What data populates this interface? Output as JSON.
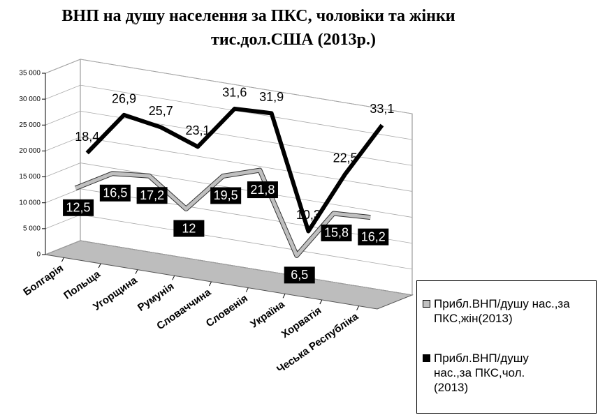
{
  "chart_data": {
    "type": "line3d",
    "title": "ВНП на душу населення за ПКС, чоловіки та жінки тис.дол.США (2013р.)",
    "categories": [
      "Болгарія",
      "Польща",
      "Угорщина",
      "Румунія",
      "Словаччина",
      "Словенія",
      "Україна",
      "Хорватія",
      "Чеська Республіка"
    ],
    "series": [
      {
        "name": "Прибл.ВНП/душу нас.,за ПКС,жін(2013)",
        "color": "#c0c0c0",
        "values": [
          12500,
          16500,
          17200,
          12000,
          19500,
          21800,
          6500,
          15800,
          16200
        ],
        "value_labels": [
          "12,5",
          "16,5",
          "17,2",
          "12",
          "19,5",
          "21,8",
          "6,5",
          "15,8",
          "16,2"
        ]
      },
      {
        "name": "Прибл.ВНП/душу нас.,за ПКС,чол.(2013)",
        "color": "#000000",
        "values": [
          18400,
          26900,
          25700,
          23100,
          31600,
          31900,
          10300,
          22500,
          33100
        ],
        "value_labels": [
          "18,4",
          "26,9",
          "25,7",
          "23,1",
          "31,6",
          "31,9",
          "10,3",
          "22,5",
          "33,1"
        ]
      }
    ],
    "ylim": [
      0,
      35000
    ],
    "yticks": [
      0,
      {
        "value": 5000,
        "label": "5 000"
      },
      {
        "value": 10000,
        "label": "10 000"
      },
      {
        "value": 15000,
        "label": "15 000"
      },
      {
        "value": 20000,
        "label": "20 000"
      },
      {
        "value": 25000,
        "label": "25 000"
      },
      {
        "value": 30000,
        "label": "30 000"
      },
      {
        "value": 35000,
        "label": "35 000"
      }
    ],
    "grid": true
  }
}
